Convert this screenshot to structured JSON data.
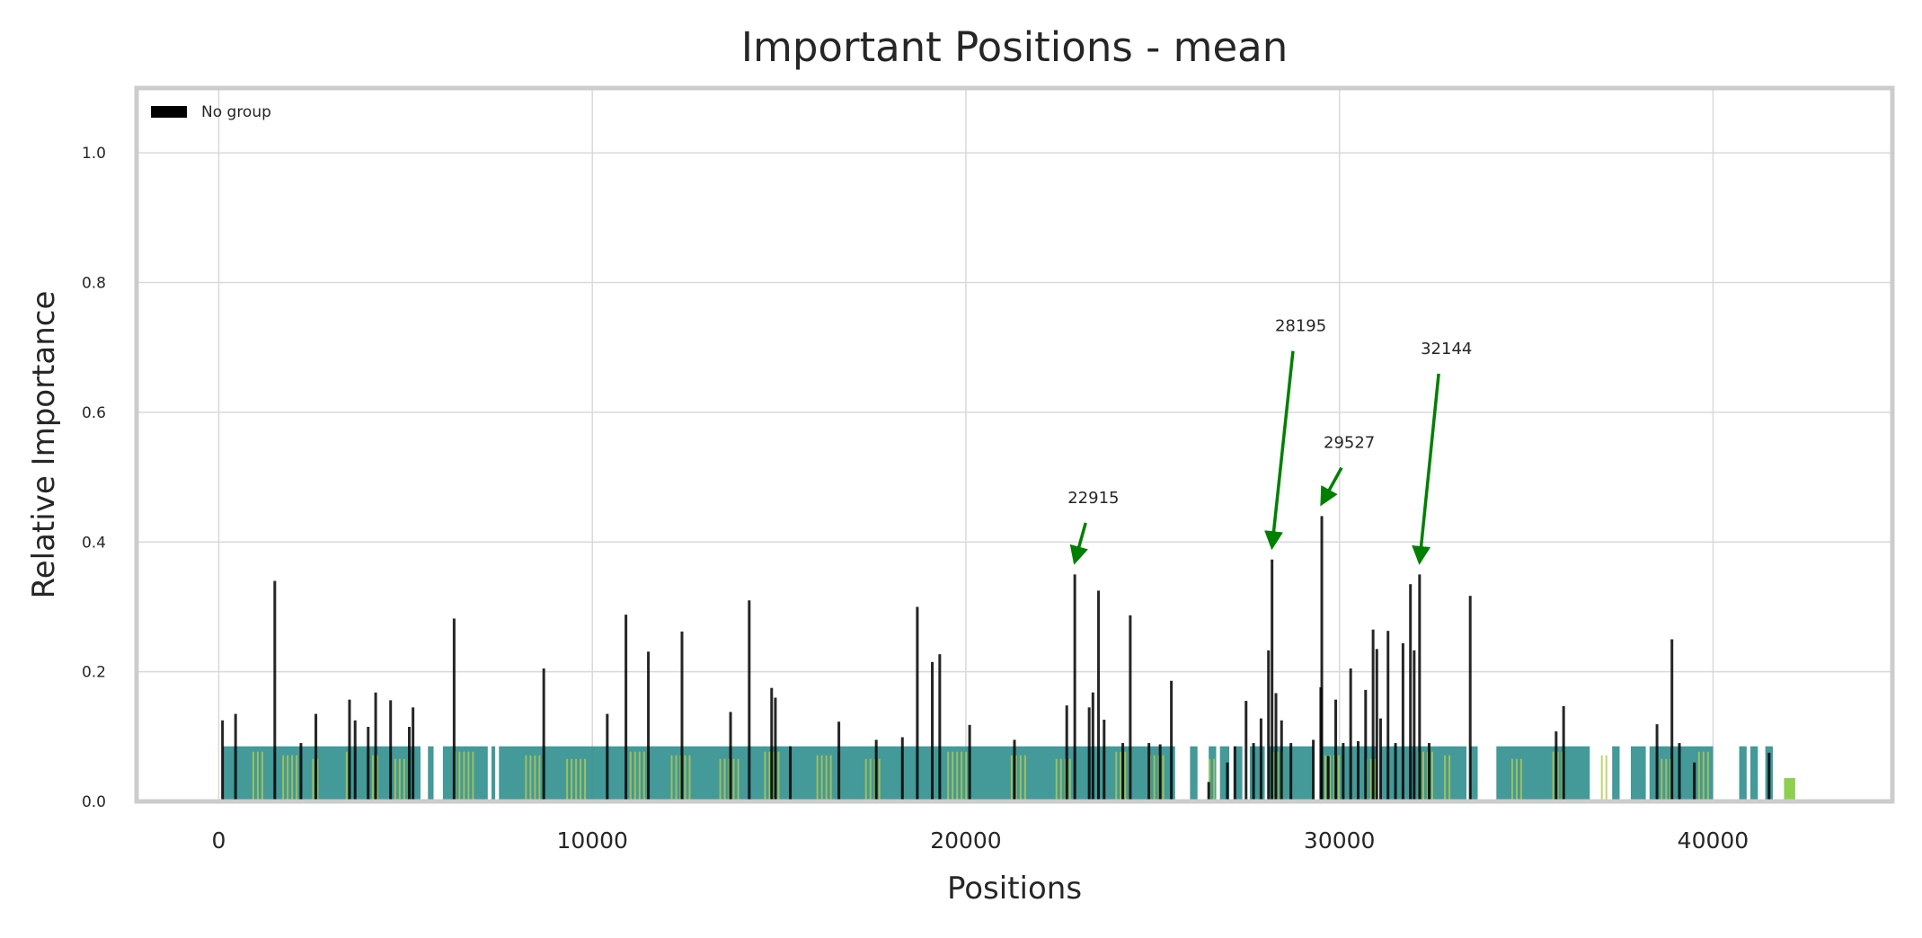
{
  "chart_data": {
    "type": "bar",
    "title": "Important Positions - mean",
    "xlabel": "Positions",
    "ylabel": "Relative Importance",
    "xlim": [
      -2200,
      44800
    ],
    "ylim": [
      0,
      1.1
    ],
    "xticks": [
      0,
      10000,
      20000,
      30000,
      40000
    ],
    "xtick_labels": [
      "0",
      "10000",
      "20000",
      "30000",
      "40000"
    ],
    "yticks": [
      0.0,
      0.2,
      0.4,
      0.6,
      0.8,
      1.0
    ],
    "ytick_labels": [
      "0.0",
      "0.2",
      "0.4",
      "0.6",
      "0.8",
      "1.0"
    ],
    "grid": true,
    "legend": {
      "placement": "top-left",
      "entries": [
        {
          "label": "No group",
          "color": "#000000"
        }
      ]
    },
    "series": [
      {
        "name": "No group",
        "color": "#000000",
        "points": [
          [
            100,
            0.125
          ],
          [
            450,
            0.135
          ],
          [
            1500,
            0.34
          ],
          [
            2200,
            0.09
          ],
          [
            2600,
            0.135
          ],
          [
            3500,
            0.157
          ],
          [
            3650,
            0.125
          ],
          [
            4000,
            0.115
          ],
          [
            4200,
            0.168
          ],
          [
            4600,
            0.156
          ],
          [
            5100,
            0.115
          ],
          [
            5200,
            0.145
          ],
          [
            6300,
            0.282
          ],
          [
            8700,
            0.205
          ],
          [
            10400,
            0.135
          ],
          [
            10900,
            0.288
          ],
          [
            11500,
            0.231
          ],
          [
            12400,
            0.262
          ],
          [
            13700,
            0.138
          ],
          [
            14200,
            0.31
          ],
          [
            14800,
            0.175
          ],
          [
            14900,
            0.16
          ],
          [
            15300,
            0.085
          ],
          [
            16600,
            0.123
          ],
          [
            17600,
            0.095
          ],
          [
            18300,
            0.099
          ],
          [
            18700,
            0.3
          ],
          [
            19100,
            0.215
          ],
          [
            19300,
            0.227
          ],
          [
            20100,
            0.118
          ],
          [
            21300,
            0.095
          ],
          [
            22700,
            0.148
          ],
          [
            22915,
            0.35
          ],
          [
            23300,
            0.145
          ],
          [
            23400,
            0.168
          ],
          [
            23550,
            0.325
          ],
          [
            23700,
            0.126
          ],
          [
            24200,
            0.09
          ],
          [
            24400,
            0.287
          ],
          [
            24900,
            0.09
          ],
          [
            25200,
            0.088
          ],
          [
            25500,
            0.186
          ],
          [
            26500,
            0.03
          ],
          [
            27000,
            0.06
          ],
          [
            27200,
            0.085
          ],
          [
            27500,
            0.155
          ],
          [
            27700,
            0.09
          ],
          [
            27900,
            0.128
          ],
          [
            28100,
            0.233
          ],
          [
            28195,
            0.373
          ],
          [
            28300,
            0.167
          ],
          [
            28450,
            0.125
          ],
          [
            28700,
            0.09
          ],
          [
            29300,
            0.095
          ],
          [
            29500,
            0.176
          ],
          [
            29527,
            0.44
          ],
          [
            29700,
            0.07
          ],
          [
            29900,
            0.157
          ],
          [
            30100,
            0.09
          ],
          [
            30300,
            0.205
          ],
          [
            30500,
            0.093
          ],
          [
            30700,
            0.172
          ],
          [
            30900,
            0.265
          ],
          [
            31000,
            0.235
          ],
          [
            31100,
            0.128
          ],
          [
            31300,
            0.263
          ],
          [
            31500,
            0.09
          ],
          [
            31700,
            0.244
          ],
          [
            31900,
            0.335
          ],
          [
            32000,
            0.233
          ],
          [
            32144,
            0.35
          ],
          [
            32400,
            0.09
          ],
          [
            33500,
            0.317
          ],
          [
            35800,
            0.108
          ],
          [
            36000,
            0.147
          ],
          [
            38500,
            0.119
          ],
          [
            38900,
            0.25
          ],
          [
            39100,
            0.09
          ],
          [
            39500,
            0.06
          ],
          [
            41500,
            0.075
          ]
        ]
      }
    ],
    "background_band": {
      "ymax": 0.085,
      "color": "#3a9494",
      "ranges": [
        [
          100,
          5400
        ],
        [
          5600,
          5750
        ],
        [
          6000,
          7200
        ],
        [
          7300,
          7400
        ],
        [
          7500,
          25600
        ],
        [
          26000,
          26200
        ],
        [
          26500,
          26700
        ],
        [
          26800,
          27050
        ],
        [
          27200,
          27400
        ],
        [
          27600,
          28000
        ],
        [
          28100,
          29300
        ],
        [
          29500,
          31000
        ],
        [
          31100,
          33400
        ],
        [
          33500,
          33700
        ],
        [
          34200,
          36700
        ],
        [
          37300,
          37500
        ],
        [
          37800,
          38200
        ],
        [
          38300,
          40000
        ],
        [
          40700,
          40900
        ],
        [
          41000,
          41200
        ],
        [
          41400,
          41600
        ]
      ],
      "highlight_color": "#b5c94b",
      "highlights": [
        [
          900,
          1200
        ],
        [
          1700,
          2100
        ],
        [
          2500,
          2700
        ],
        [
          3400,
          3500
        ],
        [
          4100,
          4300
        ],
        [
          4700,
          5100
        ],
        [
          6300,
          6900
        ],
        [
          8200,
          8600
        ],
        [
          9300,
          9900
        ],
        [
          11000,
          11400
        ],
        [
          12100,
          12600
        ],
        [
          13400,
          13900
        ],
        [
          14600,
          15000
        ],
        [
          16000,
          16400
        ],
        [
          17300,
          17700
        ],
        [
          19500,
          20000
        ],
        [
          21200,
          21600
        ],
        [
          22400,
          22800
        ],
        [
          24000,
          24400
        ],
        [
          24900,
          25300
        ],
        [
          26500,
          26700
        ],
        [
          28200,
          28500
        ],
        [
          29600,
          30000
        ],
        [
          30700,
          31000
        ],
        [
          32100,
          32500
        ],
        [
          32800,
          33000
        ],
        [
          34600,
          34900
        ],
        [
          35700,
          36000
        ],
        [
          37000,
          37200
        ],
        [
          38600,
          38900
        ],
        [
          39600,
          39900
        ]
      ],
      "extra_color": "#8fcf4f",
      "extras": [
        [
          41900,
          42200
        ]
      ]
    },
    "annotations": [
      {
        "label": "22915",
        "x": 22915,
        "y": 0.35,
        "text_x": 23350,
        "text_y": 0.46
      },
      {
        "label": "28195",
        "x": 28195,
        "y": 0.373,
        "text_x": 28900,
        "text_y": 0.725
      },
      {
        "label": "29527",
        "x": 29527,
        "y": 0.44,
        "text_x": 30200,
        "text_y": 0.545
      },
      {
        "label": "32144",
        "x": 32144,
        "y": 0.35,
        "text_x": 32800,
        "text_y": 0.69
      }
    ],
    "annotation_color": "#008000"
  }
}
